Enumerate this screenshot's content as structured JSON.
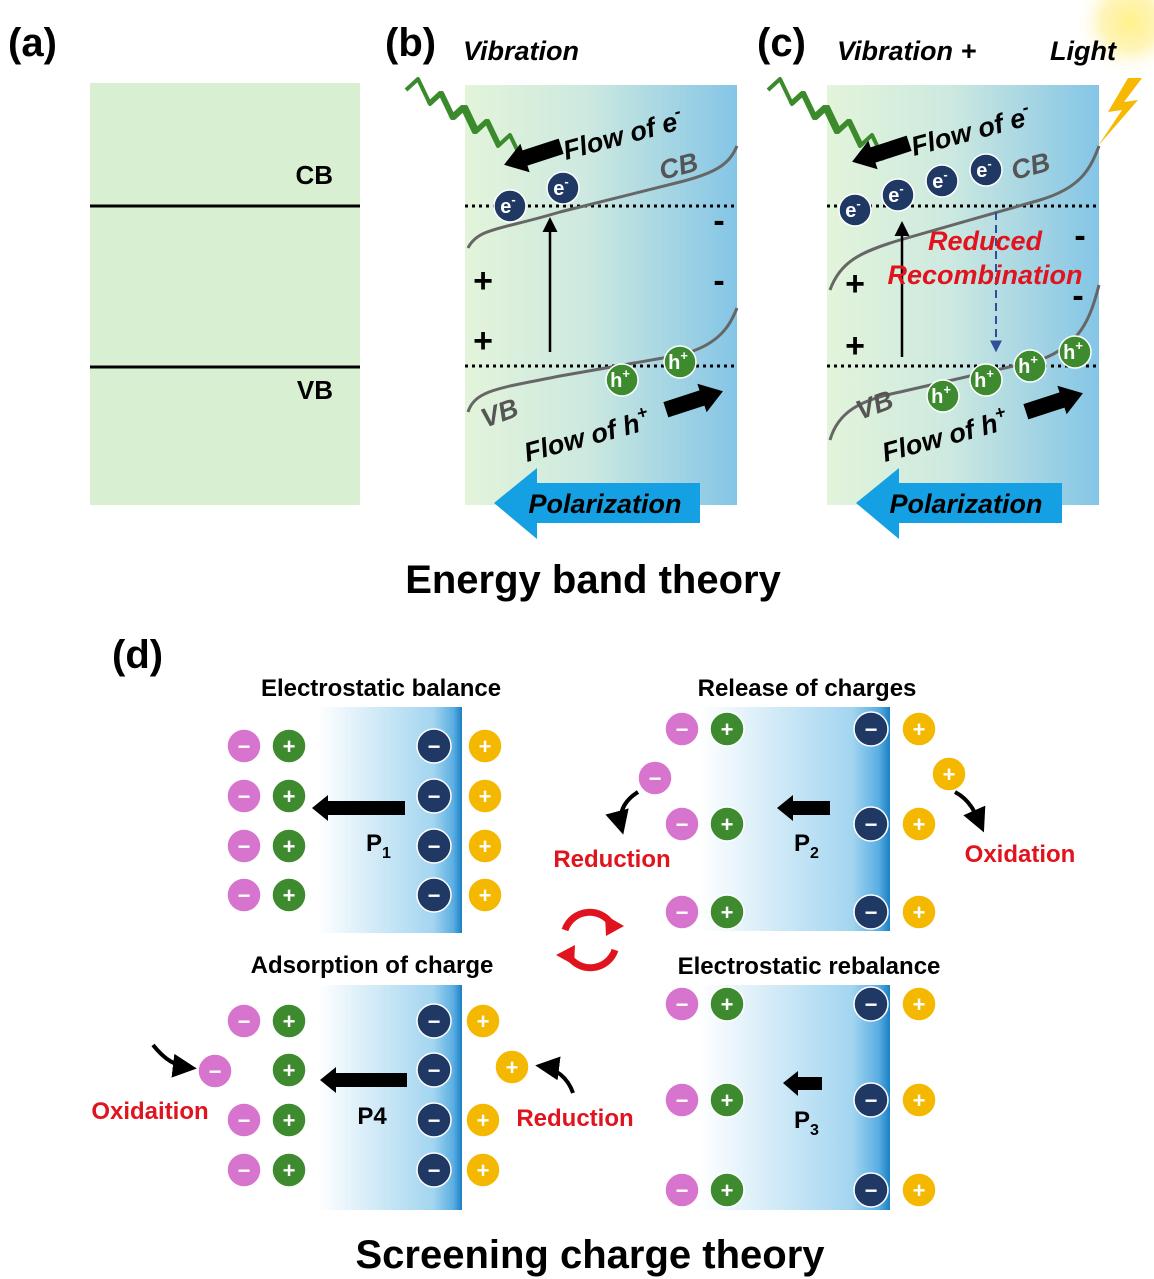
{
  "energy_band": {
    "title": "Energy band theory",
    "a": {
      "label": "(a)",
      "cb": "CB",
      "vb": "VB"
    },
    "b": {
      "label": "(b)",
      "vibration": "Vibration",
      "flow_e": "Flow of e",
      "flow_h": "Flow of h",
      "cb": "CB",
      "vb": "VB",
      "polarization": "Polarization"
    },
    "c": {
      "label": "(c)",
      "vibration": "Vibration +",
      "light": "Light",
      "flow_e": "Flow of e",
      "flow_h": "Flow of h",
      "cb": "CB",
      "vb": "VB",
      "reduced": "Reduced",
      "recombination": "Recombination",
      "polarization": "Polarization"
    },
    "electron": "e",
    "hole": "h",
    "minus": "-",
    "plus": "+"
  },
  "screening": {
    "label": "(d)",
    "title": "Screening charge theory",
    "states": [
      {
        "title": "Electrostatic balance",
        "p": "P",
        "sub": "1"
      },
      {
        "title": "Release of charges",
        "p": "P",
        "sub": "2"
      },
      {
        "title": "Adsorption of charge",
        "p": "P4"
      },
      {
        "title": "Electrostatic rebalance",
        "p": "P",
        "sub": "3"
      }
    ],
    "reduction": "Reduction",
    "oxidation": "Oxidation",
    "oxidaition": "Oxidaition",
    "minus": "−",
    "plus": "+"
  }
}
